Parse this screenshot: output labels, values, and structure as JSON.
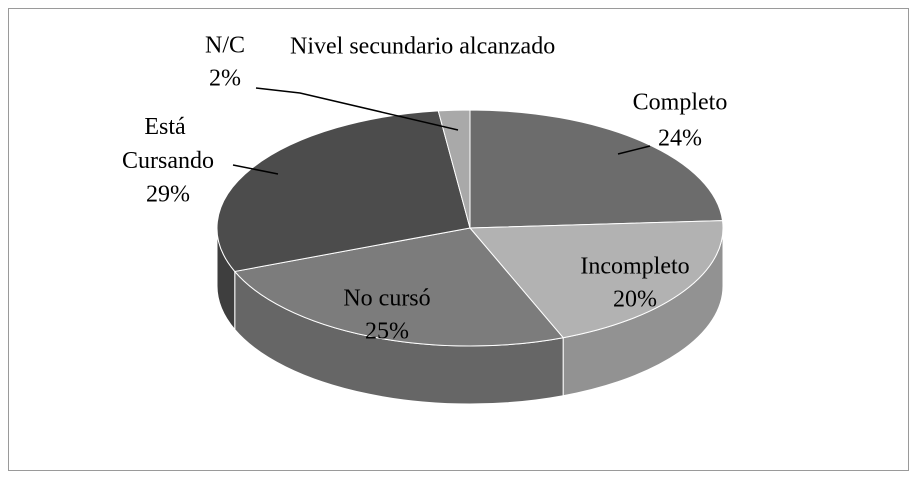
{
  "chart_data": {
    "type": "pie3d",
    "title": "Nivel secundario alcanzado",
    "categories": [
      "Completo",
      "Incompleto",
      "No cursó",
      "Está Cursando",
      "N/C"
    ],
    "values": [
      24,
      20,
      25,
      29,
      2
    ],
    "value_labels": [
      "24%",
      "20%",
      "25%",
      "29%",
      "2%"
    ],
    "colors": [
      "#6c6c6c",
      "#b2b2b2",
      "#7c7c7c",
      "#4c4c4c",
      "#a9a9a9"
    ]
  }
}
